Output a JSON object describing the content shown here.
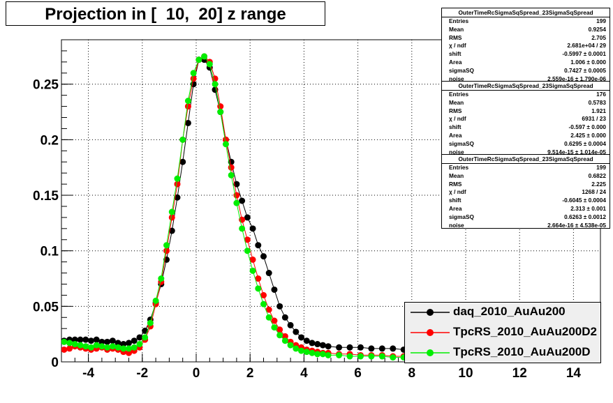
{
  "title": "Projection in [  10,  20] z range",
  "chart_data": {
    "type": "scatter",
    "xlim": [
      -5,
      15
    ],
    "ylim": [
      0,
      0.29
    ],
    "x_ticks": [
      -4,
      -2,
      0,
      2,
      4,
      6,
      8,
      10,
      12,
      14
    ],
    "x_tick_labels": [
      "-4",
      "-2",
      "0",
      "2",
      "4",
      "6",
      "8",
      "10",
      "12",
      "14"
    ],
    "y_ticks": [
      0,
      0.05,
      0.1,
      0.15,
      0.2,
      0.25
    ],
    "y_tick_labels": [
      "0",
      "0.05",
      "0.1",
      "0.15",
      "0.2",
      "0.25"
    ],
    "grid": true,
    "legend_position": "bottom-right",
    "series": [
      {
        "name": "daq_2010_AuAu200",
        "color": "#000000",
        "x": [
          -4.9,
          -4.7,
          -4.5,
          -4.3,
          -4.1,
          -3.9,
          -3.7,
          -3.5,
          -3.3,
          -3.1,
          -2.9,
          -2.7,
          -2.5,
          -2.3,
          -2.1,
          -1.9,
          -1.7,
          -1.5,
          -1.3,
          -1.1,
          -0.9,
          -0.7,
          -0.5,
          -0.3,
          -0.1,
          0.1,
          0.3,
          0.5,
          0.7,
          0.9,
          1.1,
          1.3,
          1.5,
          1.7,
          1.9,
          2.1,
          2.3,
          2.5,
          2.7,
          2.9,
          3.1,
          3.3,
          3.5,
          3.7,
          3.9,
          4.1,
          4.3,
          4.5,
          4.7,
          4.9,
          5.3,
          5.7,
          6.1,
          6.5,
          6.9,
          7.3,
          7.7,
          8.1,
          8.5,
          8.9,
          9.3,
          9.7
        ],
        "y": [
          0.019,
          0.02,
          0.02,
          0.02,
          0.02,
          0.019,
          0.02,
          0.018,
          0.018,
          0.019,
          0.017,
          0.016,
          0.017,
          0.019,
          0.022,
          0.028,
          0.038,
          0.053,
          0.07,
          0.092,
          0.118,
          0.148,
          0.18,
          0.215,
          0.25,
          0.272,
          0.272,
          0.265,
          0.245,
          0.225,
          0.2,
          0.18,
          0.16,
          0.145,
          0.13,
          0.12,
          0.105,
          0.095,
          0.08,
          0.065,
          0.05,
          0.04,
          0.033,
          0.027,
          0.022,
          0.019,
          0.017,
          0.016,
          0.015,
          0.014,
          0.013,
          0.013,
          0.013,
          0.012,
          0.012,
          0.012,
          0.011,
          0.011,
          0.01,
          0.01,
          0.009,
          0.009
        ]
      },
      {
        "name": "TpcRS_2010_AuAu200D2",
        "color": "#ff0000",
        "x": [
          -4.9,
          -4.7,
          -4.5,
          -4.3,
          -4.1,
          -3.9,
          -3.7,
          -3.5,
          -3.3,
          -3.1,
          -2.9,
          -2.7,
          -2.5,
          -2.3,
          -2.1,
          -1.9,
          -1.7,
          -1.5,
          -1.3,
          -1.1,
          -0.9,
          -0.7,
          -0.5,
          -0.3,
          -0.1,
          0.1,
          0.3,
          0.5,
          0.7,
          0.9,
          1.1,
          1.3,
          1.5,
          1.7,
          1.9,
          2.1,
          2.3,
          2.5,
          2.7,
          2.9,
          3.1,
          3.3,
          3.5,
          3.7,
          3.9,
          4.1,
          4.3,
          4.5,
          4.7,
          4.9,
          5.3,
          5.7,
          6.1,
          6.5,
          6.9,
          7.3,
          7.7,
          8.1,
          8.5,
          8.9,
          9.3,
          9.7
        ],
        "y": [
          0.011,
          0.012,
          0.014,
          0.013,
          0.012,
          0.011,
          0.012,
          0.013,
          0.011,
          0.012,
          0.011,
          0.009,
          0.008,
          0.01,
          0.013,
          0.02,
          0.032,
          0.052,
          0.072,
          0.1,
          0.13,
          0.16,
          0.2,
          0.23,
          0.255,
          0.272,
          0.275,
          0.27,
          0.255,
          0.23,
          0.2,
          0.175,
          0.15,
          0.128,
          0.11,
          0.092,
          0.075,
          0.06,
          0.047,
          0.037,
          0.029,
          0.023,
          0.018,
          0.015,
          0.013,
          0.011,
          0.01,
          0.009,
          0.008,
          0.008,
          0.007,
          0.007,
          0.006,
          0.006,
          0.006,
          0.005,
          0.005,
          0.005,
          0.005,
          0.004,
          0.004,
          0.004
        ]
      },
      {
        "name": "TpcRS_2010_AuAu200D",
        "color": "#00ee00",
        "x": [
          -4.9,
          -4.7,
          -4.5,
          -4.3,
          -4.1,
          -3.9,
          -3.7,
          -3.5,
          -3.3,
          -3.1,
          -2.9,
          -2.7,
          -2.5,
          -2.3,
          -2.1,
          -1.9,
          -1.7,
          -1.5,
          -1.3,
          -1.1,
          -0.9,
          -0.7,
          -0.5,
          -0.3,
          -0.1,
          0.1,
          0.3,
          0.5,
          0.7,
          0.9,
          1.1,
          1.3,
          1.5,
          1.7,
          1.9,
          2.1,
          2.3,
          2.5,
          2.7,
          2.9,
          3.1,
          3.3,
          3.5,
          3.7,
          3.9,
          4.1,
          4.3,
          4.5,
          4.7,
          4.9,
          5.3,
          5.7,
          6.1,
          6.5,
          6.9,
          7.3,
          7.7,
          8.1,
          8.5,
          8.9,
          9.3,
          9.7
        ],
        "y": [
          0.018,
          0.017,
          0.016,
          0.015,
          0.014,
          0.013,
          0.015,
          0.014,
          0.013,
          0.014,
          0.013,
          0.012,
          0.012,
          0.013,
          0.016,
          0.022,
          0.035,
          0.055,
          0.075,
          0.105,
          0.135,
          0.165,
          0.2,
          0.235,
          0.26,
          0.272,
          0.275,
          0.268,
          0.25,
          0.225,
          0.196,
          0.168,
          0.143,
          0.12,
          0.1,
          0.082,
          0.066,
          0.052,
          0.04,
          0.031,
          0.024,
          0.019,
          0.015,
          0.012,
          0.01,
          0.009,
          0.008,
          0.007,
          0.007,
          0.006,
          0.006,
          0.005,
          0.005,
          0.005,
          0.005,
          0.004,
          0.004,
          0.004,
          0.004,
          0.004,
          0.004,
          0.004
        ]
      }
    ]
  },
  "stats_boxes": [
    {
      "header": "OuterTimeRcSigmaSqSpread_23SigmaSqSpread",
      "rows": [
        {
          "k": "Entries",
          "v": "199"
        },
        {
          "k": "Mean",
          "v": "0.9254"
        },
        {
          "k": "RMS",
          "v": "2.705"
        },
        {
          "k": "χ  / ndf",
          "v": "2.681e+04 / 29"
        },
        {
          "k": "shift",
          "v": "-0.5997 ± 0.0001"
        },
        {
          "k": "Area",
          "v": "1.006 ± 0.000"
        },
        {
          "k": "sigmaSQ",
          "v": "0.7427 ± 0.0005"
        },
        {
          "k": "noise",
          "v": "2.559e-16 ± 1.790e-06"
        }
      ]
    },
    {
      "header": "OuterTimeRcSigmaSqSpread_23SigmaSqSpread",
      "rows": [
        {
          "k": "Entries",
          "v": "176"
        },
        {
          "k": "Mean",
          "v": "0.5783"
        },
        {
          "k": "RMS",
          "v": "1.921"
        },
        {
          "k": "χ  / ndf",
          "v": "6931 / 23"
        },
        {
          "k": "shift",
          "v": "-0.597 ± 0.000"
        },
        {
          "k": "Area",
          "v": "2.425 ± 0.000"
        },
        {
          "k": "sigmaSQ",
          "v": "0.6295 ± 0.0004"
        },
        {
          "k": "noise",
          "v": "9.514e-15 ± 1.014e-05"
        }
      ]
    },
    {
      "header": "OuterTimeRcSigmaSqSpread_23SigmaSqSpread",
      "rows": [
        {
          "k": "Entries",
          "v": "199"
        },
        {
          "k": "Mean",
          "v": "0.6822"
        },
        {
          "k": "RMS",
          "v": "2.225"
        },
        {
          "k": "χ  / ndf",
          "v": "1268 / 24"
        },
        {
          "k": "shift",
          "v": "-0.6045 ± 0.0004"
        },
        {
          "k": "Area",
          "v": "2.313 ± 0.001"
        },
        {
          "k": "sigmaSQ",
          "v": "0.6263 ± 0.0012"
        },
        {
          "k": "noise",
          "v": "2.664e-16 ± 4.538e-05"
        }
      ]
    }
  ],
  "legend": [
    {
      "label": "daq_2010_AuAu200",
      "color": "#000000"
    },
    {
      "label": "TpcRS_2010_AuAu200D2",
      "color": "#ff0000"
    },
    {
      "label": "TpcRS_2010_AuAu200D",
      "color": "#00ee00"
    }
  ]
}
